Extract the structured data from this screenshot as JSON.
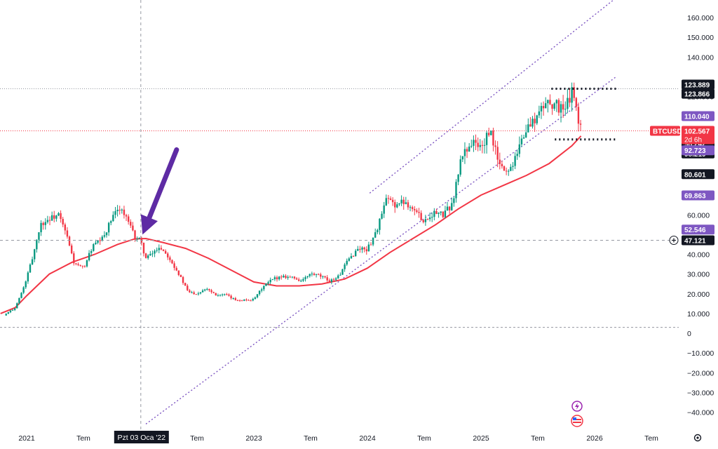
{
  "chart_data": {
    "type": "candlestick",
    "symbol": "BTCUSD",
    "time_remaining": "2d 6h",
    "last_price": "102.567",
    "crosshair_date_label": "Pzt 03 Oca '22",
    "crosshair_price_label": "47.121",
    "y_axis": {
      "ticks": [
        160000,
        150000,
        140000,
        120000,
        60000,
        40000,
        30000,
        20000,
        10000,
        0,
        -10000,
        -20000,
        -30000,
        -40000
      ],
      "tick_labels": [
        "160.000",
        "150.000",
        "140.000",
        "120.000",
        "60.000",
        "40.000",
        "30.000",
        "20.000",
        "10.000",
        "0",
        "−10.000",
        "−20.000",
        "−30.000",
        "−40.000"
      ],
      "range": [
        -45000,
        168000
      ],
      "grid": false
    },
    "x_axis": {
      "ticks": [
        2021.0,
        2021.5,
        2022.5,
        2023.0,
        2023.5,
        2024.0,
        2024.5,
        2025.0,
        2025.5,
        2026.0,
        2026.5
      ],
      "tick_labels": [
        "2021",
        "Tem",
        "Tem",
        "2023",
        "Tem",
        "2024",
        "Tem",
        "2025",
        "Tem",
        "2026",
        "Tem"
      ],
      "range": [
        2020.77,
        2026.8
      ]
    },
    "price_tags": [
      {
        "label": "123.889",
        "value": 123889,
        "bg": "#131722",
        "fg": "#ffffff"
      },
      {
        "label": "123.866",
        "value": 123866,
        "bg": "#131722",
        "fg": "#ffffff"
      },
      {
        "label": "110.040",
        "value": 110040,
        "bg": "#7e57c2",
        "fg": "#ffffff"
      },
      {
        "label": "101.295",
        "value": 101295,
        "bg": "#f23645",
        "fg": "#ffffff"
      },
      {
        "label": "98.242",
        "value": 98242,
        "bg": "#131722",
        "fg": "#ffffff"
      },
      {
        "label": "98.219",
        "value": 98219,
        "bg": "#131722",
        "fg": "#ffffff"
      },
      {
        "label": "92.723",
        "value": 92723,
        "bg": "#7e57c2",
        "fg": "#ffffff"
      },
      {
        "label": "80.601",
        "value": 80601,
        "bg": "#131722",
        "fg": "#ffffff"
      },
      {
        "label": "69.863",
        "value": 69863,
        "bg": "#7e57c2",
        "fg": "#ffffff"
      },
      {
        "label": "52.546",
        "value": 52546,
        "bg": "#7e57c2",
        "fg": "#ffffff"
      }
    ],
    "price_series": [
      [
        2020.8,
        9000
      ],
      [
        2020.9,
        13000
      ],
      [
        2020.98,
        24000
      ],
      [
        2021.05,
        38000
      ],
      [
        2021.12,
        55000
      ],
      [
        2021.2,
        58000
      ],
      [
        2021.28,
        60000
      ],
      [
        2021.35,
        50000
      ],
      [
        2021.42,
        35000
      ],
      [
        2021.5,
        33000
      ],
      [
        2021.58,
        44000
      ],
      [
        2021.67,
        48000
      ],
      [
        2021.75,
        58000
      ],
      [
        2021.82,
        64000
      ],
      [
        2021.88,
        58000
      ],
      [
        2021.95,
        49000
      ],
      [
        2022.0,
        47000
      ],
      [
        2022.05,
        38000
      ],
      [
        2022.1,
        40000
      ],
      [
        2022.17,
        44000
      ],
      [
        2022.25,
        39000
      ],
      [
        2022.33,
        31000
      ],
      [
        2022.42,
        21000
      ],
      [
        2022.5,
        20000
      ],
      [
        2022.58,
        23000
      ],
      [
        2022.67,
        19500
      ],
      [
        2022.75,
        19500
      ],
      [
        2022.83,
        17000
      ],
      [
        2022.92,
        16800
      ],
      [
        2023.0,
        17000
      ],
      [
        2023.08,
        23500
      ],
      [
        2023.17,
        27500
      ],
      [
        2023.25,
        29000
      ],
      [
        2023.33,
        28500
      ],
      [
        2023.42,
        26500
      ],
      [
        2023.5,
        30000
      ],
      [
        2023.58,
        29000
      ],
      [
        2023.67,
        26500
      ],
      [
        2023.75,
        29000
      ],
      [
        2023.83,
        37000
      ],
      [
        2023.92,
        43000
      ],
      [
        2024.0,
        42500
      ],
      [
        2024.08,
        52000
      ],
      [
        2024.17,
        68000
      ],
      [
        2024.25,
        65000
      ],
      [
        2024.33,
        67000
      ],
      [
        2024.42,
        62000
      ],
      [
        2024.5,
        57000
      ],
      [
        2024.58,
        61000
      ],
      [
        2024.67,
        60000
      ],
      [
        2024.75,
        66000
      ],
      [
        2024.83,
        90000
      ],
      [
        2024.92,
        97000
      ],
      [
        2025.0,
        94000
      ],
      [
        2025.08,
        102000
      ],
      [
        2025.17,
        84000
      ],
      [
        2025.25,
        82000
      ],
      [
        2025.33,
        95000
      ],
      [
        2025.42,
        105000
      ],
      [
        2025.5,
        110000
      ],
      [
        2025.58,
        118000
      ],
      [
        2025.67,
        115000
      ],
      [
        2025.75,
        114000
      ],
      [
        2025.8,
        123000
      ],
      [
        2025.85,
        110000
      ],
      [
        2025.88,
        102567
      ]
    ],
    "ma_series": [
      [
        2020.77,
        10000
      ],
      [
        2020.9,
        13000
      ],
      [
        2021.0,
        19000
      ],
      [
        2021.2,
        30000
      ],
      [
        2021.4,
        36000
      ],
      [
        2021.6,
        40000
      ],
      [
        2021.8,
        45000
      ],
      [
        2021.95,
        47800
      ],
      [
        2022.05,
        48000
      ],
      [
        2022.2,
        46000
      ],
      [
        2022.4,
        43000
      ],
      [
        2022.6,
        38000
      ],
      [
        2022.8,
        32000
      ],
      [
        2023.0,
        26000
      ],
      [
        2023.2,
        24000
      ],
      [
        2023.4,
        24000
      ],
      [
        2023.6,
        25000
      ],
      [
        2023.8,
        27500
      ],
      [
        2024.0,
        33000
      ],
      [
        2024.2,
        41000
      ],
      [
        2024.4,
        48000
      ],
      [
        2024.6,
        55000
      ],
      [
        2024.8,
        63000
      ],
      [
        2025.0,
        70000
      ],
      [
        2025.2,
        75000
      ],
      [
        2025.4,
        80000
      ],
      [
        2025.6,
        86000
      ],
      [
        2025.8,
        95000
      ],
      [
        2025.88,
        100000
      ]
    ],
    "channel_upper": [
      [
        2024.02,
        71000
      ],
      [
        2026.19,
        170000
      ]
    ],
    "channel_lower": [
      [
        2022.05,
        -46000
      ],
      [
        2026.19,
        130000
      ]
    ],
    "resistance_line": {
      "value": 123889,
      "from": 2025.62,
      "to": 2026.2
    },
    "support_line": {
      "value": 98242,
      "from": 2025.65,
      "to": 2026.2
    },
    "highlight_hline": 123889,
    "last_price_hline": 102567,
    "zero_hline": 3000,
    "crosshair": {
      "x": 2022.005,
      "y": 47121
    },
    "arrow": {
      "from": [
        2022.32,
        93000
      ],
      "to": [
        2022.02,
        50000
      ]
    },
    "colors": {
      "ma": "#f23645",
      "channel": "#7e57c2",
      "arrow": "#5e2ba4",
      "up": "#089981",
      "down": "#f23645",
      "last_price": "#f23645",
      "text": "#131722"
    }
  }
}
